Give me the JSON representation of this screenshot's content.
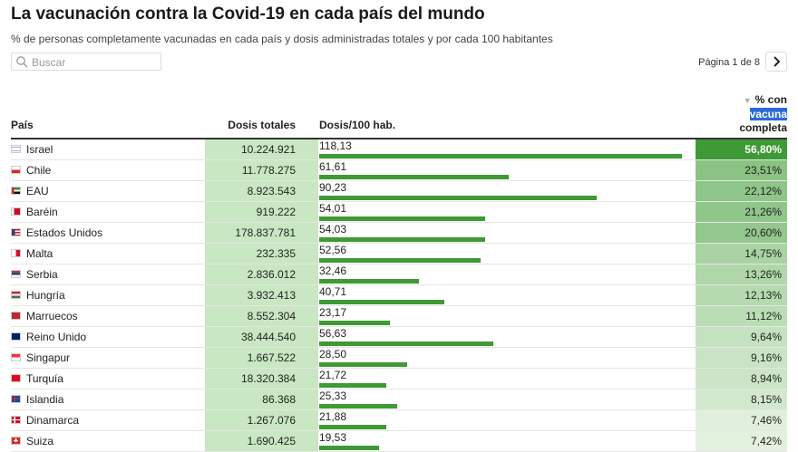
{
  "header": {
    "title": "La vacunación contra la Covid-19 en cada país del mundo",
    "subtitle": "% de personas completamente vacunadas en cada país y dosis administradas totales y por cada 100 habitantes"
  },
  "search": {
    "placeholder": "Buscar"
  },
  "pager": {
    "label": "Página 1 de 8",
    "next_icon": "chevron-right-icon"
  },
  "table": {
    "columns": {
      "country": "País",
      "doses": "Dosis totales",
      "per100": "Dosis/100 hab.",
      "complete_line1": "% con",
      "complete_line2": "vacuna",
      "complete_line3": "completa"
    }
  },
  "colors": {
    "doses_bg": "#c9e7c2",
    "bar": "#3e9a35",
    "complete_max": "#3e9a35",
    "complete_min": "#e3f2df"
  },
  "chart_data": {
    "type": "table",
    "title": "La vacunación contra la Covid-19 en cada país del mundo",
    "subtitle": "% de personas completamente vacunadas en cada país y dosis administradas totales y por cada 100 habitantes",
    "columns": [
      "País",
      "Dosis totales",
      "Dosis/100 hab.",
      "% con vacuna completa"
    ],
    "bar_max": 118.13,
    "rows": [
      {
        "country": "Israel",
        "flag": "israel-flag-icon",
        "doses": "10.224.921",
        "per100": "118,13",
        "per100_value": 118.13,
        "complete": "56,80%",
        "complete_value": 56.8
      },
      {
        "country": "Chile",
        "flag": "chile-flag-icon",
        "doses": "11.778.275",
        "per100": "61,61",
        "per100_value": 61.61,
        "complete": "23,51%",
        "complete_value": 23.51
      },
      {
        "country": "EAU",
        "flag": "uae-flag-icon",
        "doses": "8.923.543",
        "per100": "90,23",
        "per100_value": 90.23,
        "complete": "22,12%",
        "complete_value": 22.12
      },
      {
        "country": "Baréin",
        "flag": "bahrain-flag-icon",
        "doses": "919.222",
        "per100": "54,01",
        "per100_value": 54.01,
        "complete": "21,26%",
        "complete_value": 21.26
      },
      {
        "country": "Estados Unidos",
        "flag": "usa-flag-icon",
        "doses": "178.837.781",
        "per100": "54,03",
        "per100_value": 54.03,
        "complete": "20,60%",
        "complete_value": 20.6
      },
      {
        "country": "Malta",
        "flag": "malta-flag-icon",
        "doses": "232.335",
        "per100": "52,56",
        "per100_value": 52.56,
        "complete": "14,75%",
        "complete_value": 14.75
      },
      {
        "country": "Serbia",
        "flag": "serbia-flag-icon",
        "doses": "2.836.012",
        "per100": "32,46",
        "per100_value": 32.46,
        "complete": "13,26%",
        "complete_value": 13.26
      },
      {
        "country": "Hungría",
        "flag": "hungary-flag-icon",
        "doses": "3.932.413",
        "per100": "40,71",
        "per100_value": 40.71,
        "complete": "12,13%",
        "complete_value": 12.13
      },
      {
        "country": "Marruecos",
        "flag": "morocco-flag-icon",
        "doses": "8.552.304",
        "per100": "23,17",
        "per100_value": 23.17,
        "complete": "11,12%",
        "complete_value": 11.12
      },
      {
        "country": "Reino Unido",
        "flag": "uk-flag-icon",
        "doses": "38.444.540",
        "per100": "56,63",
        "per100_value": 56.63,
        "complete": "9,64%",
        "complete_value": 9.64
      },
      {
        "country": "Singapur",
        "flag": "singapore-flag-icon",
        "doses": "1.667.522",
        "per100": "28,50",
        "per100_value": 28.5,
        "complete": "9,16%",
        "complete_value": 9.16
      },
      {
        "country": "Turquía",
        "flag": "turkey-flag-icon",
        "doses": "18.320.384",
        "per100": "21,72",
        "per100_value": 21.72,
        "complete": "8,94%",
        "complete_value": 8.94
      },
      {
        "country": "Islandia",
        "flag": "iceland-flag-icon",
        "doses": "86.368",
        "per100": "25,33",
        "per100_value": 25.33,
        "complete": "8,15%",
        "complete_value": 8.15
      },
      {
        "country": "Dinamarca",
        "flag": "denmark-flag-icon",
        "doses": "1.267.076",
        "per100": "21,88",
        "per100_value": 21.88,
        "complete": "7,46%",
        "complete_value": 7.46
      },
      {
        "country": "Suiza",
        "flag": "switzerland-flag-icon",
        "doses": "1.690.425",
        "per100": "19,53",
        "per100_value": 19.53,
        "complete": "7,42%",
        "complete_value": 7.42
      }
    ]
  }
}
